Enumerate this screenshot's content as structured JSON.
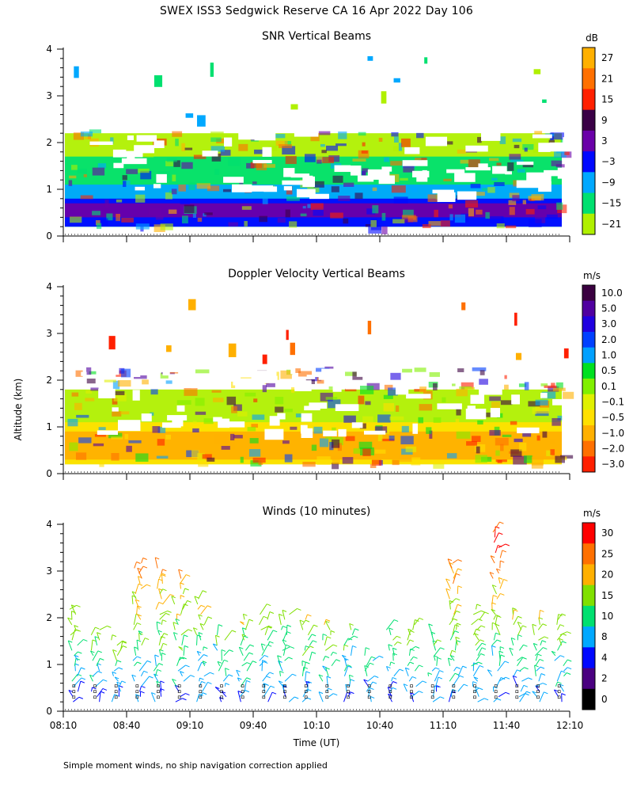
{
  "page": {
    "title": "SWEX ISS3 Sedgwick Reserve CA  16 Apr 2022 Day 106",
    "ylabel": "Altitude (km)",
    "xlabel": "Time (UT)",
    "footnote": "Simple moment winds, no ship navigation correction applied"
  },
  "chart_data": [
    {
      "type": "heatmap",
      "title": "SNR Vertical Beams",
      "xlabel": "Time (UT)",
      "ylabel": "Altitude (km)",
      "x_ticks": [
        "08:10",
        "08:40",
        "09:10",
        "09:40",
        "10:10",
        "10:40",
        "11:10",
        "11:40",
        "12:10"
      ],
      "xlim_minutes": [
        0,
        240
      ],
      "ylim": [
        0,
        4
      ],
      "y_ticks": [
        "0",
        "1",
        "2",
        "3",
        "4"
      ],
      "colorbar": {
        "unit": "dB",
        "labels": [
          "27",
          "21",
          "15",
          "9",
          "3",
          "−3",
          "−9",
          "−15",
          "−21"
        ],
        "colors": [
          "#ffb000",
          "#ff7000",
          "#ff2000",
          "#3a0046",
          "#6a00a8",
          "#0008ff",
          "#00a8ff",
          "#00e070",
          "#b0f000"
        ]
      },
      "layers": [
        {
          "zmin": 0.2,
          "zmax": 2.2,
          "color": "#b0f000"
        },
        {
          "zmin": 0.2,
          "zmax": 1.7,
          "color": "#00e070"
        },
        {
          "zmin": 0.2,
          "zmax": 1.1,
          "color": "#00a8ff"
        },
        {
          "zmin": 0.2,
          "zmax": 0.8,
          "color": "#0008ff"
        },
        {
          "zmin": 0.4,
          "zmax": 0.7,
          "color": "#6a00a8"
        }
      ]
    },
    {
      "type": "heatmap",
      "title": "Doppler Velocity Vertical Beams",
      "xlabel": "Time (UT)",
      "ylabel": "Altitude (km)",
      "x_ticks": [
        "08:10",
        "08:40",
        "09:10",
        "09:40",
        "10:10",
        "10:40",
        "11:10",
        "11:40",
        "12:10"
      ],
      "xlim_minutes": [
        0,
        240
      ],
      "ylim": [
        0,
        4
      ],
      "y_ticks": [
        "0",
        "1",
        "2",
        "3",
        "4"
      ],
      "colorbar": {
        "unit": "m/s",
        "labels": [
          "10.0",
          "5.0",
          "3.0",
          "2.0",
          "1.0",
          "0.5",
          "0.1",
          "−0.1",
          "−0.5",
          "−1.0",
          "−2.0",
          "−3.0"
        ],
        "colors": [
          "#3a0040",
          "#5000a0",
          "#2000e0",
          "#0040ff",
          "#00a0ff",
          "#00e020",
          "#80f000",
          "#e0f000",
          "#ffe000",
          "#ffb000",
          "#ff7000",
          "#ff2000"
        ]
      },
      "layers": [
        {
          "zmin": 0.2,
          "zmax": 1.8,
          "color": "#b0f000"
        },
        {
          "zmin": 0.2,
          "zmax": 1.1,
          "color": "#ffe000"
        },
        {
          "zmin": 0.3,
          "zmax": 0.9,
          "color": "#ffb000"
        }
      ]
    },
    {
      "type": "wind_barbs",
      "title": "Winds (10 minutes)",
      "xlabel": "Time (UT)",
      "ylabel": "Altitude (km)",
      "x_ticks": [
        "08:10",
        "08:40",
        "09:10",
        "09:40",
        "10:10",
        "10:40",
        "11:10",
        "11:40",
        "12:10"
      ],
      "xlim_minutes": [
        0,
        240
      ],
      "ylim": [
        0,
        4
      ],
      "y_ticks": [
        "0",
        "1",
        "2",
        "3",
        "4"
      ],
      "colorbar": {
        "unit": "m/s",
        "labels": [
          "30",
          "25",
          "20",
          "15",
          "10",
          "8",
          "4",
          "2",
          "0"
        ],
        "colors": [
          "#ff0000",
          "#ff7000",
          "#ffb000",
          "#80e000",
          "#00e070",
          "#00a8ff",
          "#0008ff",
          "#4a0080",
          "#000000"
        ]
      },
      "profile_times_minutes": [
        5,
        15,
        25,
        35,
        45,
        55,
        65,
        75,
        85,
        95,
        105,
        115,
        125,
        135,
        145,
        155,
        165,
        175,
        185,
        195,
        205,
        215,
        225,
        235
      ],
      "top_km": [
        2.2,
        1.8,
        1.6,
        3.2,
        3.1,
        2.9,
        2.5,
        1.7,
        2.0,
        2.1,
        2.1,
        2.0,
        1.9,
        1.8,
        1.3,
        1.8,
        1.9,
        1.7,
        3.2,
        2.2,
        3.9,
        2.1,
        2.0,
        2.0
      ]
    }
  ]
}
